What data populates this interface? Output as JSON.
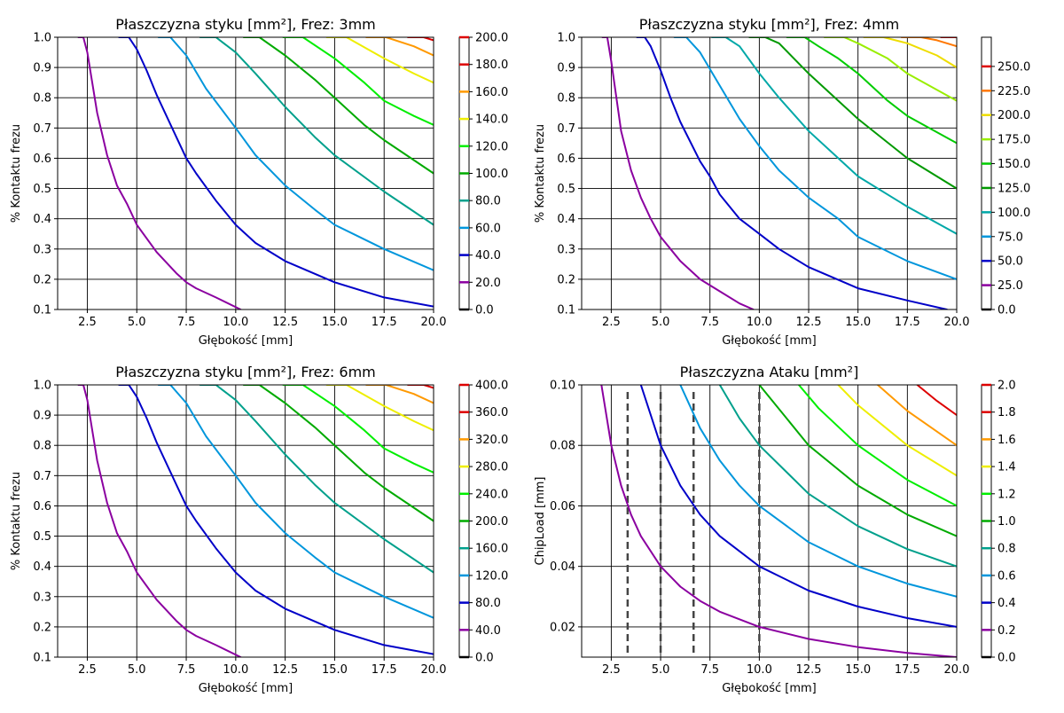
{
  "chart_data": [
    {
      "type": "line",
      "title": "Płaszczyzna styku [mm²], Frez: 3mm",
      "xlabel": "Głębokość [mm]",
      "ylabel": "% Kontaktu frezu",
      "xlim": [
        1,
        20
      ],
      "ylim": [
        0.1,
        1.0
      ],
      "grid": true,
      "xticks": [
        "2.5",
        "5.0",
        "7.5",
        "10.0",
        "12.5",
        "15.0",
        "17.5",
        "20.0"
      ],
      "yticks": [
        "0.1",
        "0.2",
        "0.3",
        "0.4",
        "0.5",
        "0.6",
        "0.7",
        "0.8",
        "0.9",
        "1.0"
      ],
      "colorbar": {
        "ticks": [
          "0.0",
          "20.0",
          "40.0",
          "60.0",
          "80.0",
          "100.0",
          "120.0",
          "140.0",
          "160.0",
          "180.0",
          "200.0"
        ],
        "range": [
          0,
          200
        ],
        "levels": [
          0,
          20,
          40,
          60,
          80,
          100,
          120,
          140,
          160,
          180,
          200
        ],
        "colors": [
          "#000000",
          "#8B00A0",
          "#0000C8",
          "#0096DC",
          "#00A08C",
          "#00AA00",
          "#00EE00",
          "#EEEE00",
          "#FF9900",
          "#DD0000",
          "#DD0000"
        ]
      },
      "series": [
        {
          "level": 20,
          "x": [
            2.05,
            2.3,
            2.5,
            3.0,
            3.5,
            4.0,
            4.5,
            5.0,
            6.0,
            7.0,
            7.5,
            8.0,
            9.0,
            10.25
          ],
          "y": [
            1.0,
            1.0,
            0.95,
            0.75,
            0.61,
            0.51,
            0.45,
            0.38,
            0.29,
            0.22,
            0.19,
            0.17,
            0.14,
            0.1
          ]
        },
        {
          "level": 40,
          "x": [
            4.1,
            4.6,
            5.0,
            5.5,
            6.0,
            7.0,
            7.5,
            8.0,
            9.0,
            10.0,
            11.0,
            12.5,
            15.0,
            17.5,
            20.0
          ],
          "y": [
            1.0,
            1.0,
            0.96,
            0.89,
            0.81,
            0.67,
            0.6,
            0.55,
            0.46,
            0.38,
            0.32,
            0.26,
            0.19,
            0.14,
            0.11
          ]
        },
        {
          "level": 60,
          "x": [
            6.1,
            6.7,
            7.5,
            8.5,
            10.0,
            11.0,
            12.5,
            14.0,
            15.0,
            17.5,
            20.0
          ],
          "y": [
            1.0,
            1.0,
            0.94,
            0.83,
            0.7,
            0.61,
            0.51,
            0.43,
            0.38,
            0.3,
            0.23
          ]
        },
        {
          "level": 80,
          "x": [
            8.2,
            9.0,
            10.0,
            11.0,
            12.5,
            14.0,
            15.0,
            17.5,
            20.0
          ],
          "y": [
            1.0,
            1.0,
            0.95,
            0.88,
            0.77,
            0.67,
            0.61,
            0.49,
            0.38
          ]
        },
        {
          "level": 100,
          "x": [
            10.4,
            11.2,
            12.5,
            14.0,
            15.0,
            16.5,
            17.5,
            20.0
          ],
          "y": [
            1.0,
            1.0,
            0.94,
            0.86,
            0.8,
            0.71,
            0.66,
            0.55
          ]
        },
        {
          "level": 120,
          "x": [
            12.4,
            13.4,
            15.0,
            16.5,
            17.5,
            19.0,
            20.0
          ],
          "y": [
            1.0,
            1.0,
            0.93,
            0.85,
            0.79,
            0.74,
            0.71
          ]
        },
        {
          "level": 140,
          "x": [
            14.6,
            15.6,
            17.5,
            19.0,
            20.0
          ],
          "y": [
            1.0,
            1.0,
            0.93,
            0.88,
            0.85
          ]
        },
        {
          "level": 160,
          "x": [
            16.6,
            17.6,
            19.0,
            20.0
          ],
          "y": [
            1.0,
            1.0,
            0.97,
            0.94
          ]
        },
        {
          "level": 180,
          "x": [
            18.7,
            19.5,
            20.0
          ],
          "y": [
            1.0,
            1.0,
            0.99
          ]
        }
      ]
    },
    {
      "type": "line",
      "title": "Płaszczyzna styku [mm²], Frez: 4mm",
      "xlabel": "Głębokość [mm]",
      "ylabel": "% Kontaktu frezu",
      "xlim": [
        1,
        20
      ],
      "ylim": [
        0.1,
        1.0
      ],
      "grid": true,
      "xticks": [
        "2.5",
        "5.0",
        "7.5",
        "10.0",
        "12.5",
        "15.0",
        "17.5",
        "20.0"
      ],
      "yticks": [
        "0.1",
        "0.2",
        "0.3",
        "0.4",
        "0.5",
        "0.6",
        "0.7",
        "0.8",
        "0.9",
        "1.0"
      ],
      "colorbar": {
        "ticks": [
          "0.0",
          "25.0",
          "50.0",
          "75.0",
          "100.0",
          "125.0",
          "150.0",
          "175.0",
          "200.0",
          "225.0",
          "250.0"
        ],
        "range": [
          0,
          280
        ],
        "levels": [
          0,
          25,
          50,
          75,
          100,
          125,
          150,
          175,
          200,
          225,
          250
        ],
        "colors": [
          "#000000",
          "#8B00A0",
          "#0000C8",
          "#0096DC",
          "#00A8A8",
          "#009900",
          "#00CC00",
          "#99EE00",
          "#EEDD00",
          "#FF7700",
          "#DD0000"
        ]
      },
      "series": [
        {
          "level": 25,
          "x": [
            2.05,
            2.3,
            2.5,
            3.0,
            3.5,
            4.0,
            4.5,
            5.0,
            6.0,
            7.0,
            8.0,
            9.0,
            9.7
          ],
          "y": [
            1.0,
            1.0,
            0.92,
            0.69,
            0.56,
            0.47,
            0.4,
            0.34,
            0.26,
            0.2,
            0.16,
            0.12,
            0.1
          ]
        },
        {
          "level": 50,
          "x": [
            3.8,
            4.2,
            4.5,
            5.0,
            5.5,
            6.0,
            7.0,
            7.5,
            8.0,
            9.0,
            10.0,
            11.0,
            12.5,
            15.0,
            17.5,
            19.5
          ],
          "y": [
            1.0,
            1.0,
            0.97,
            0.89,
            0.8,
            0.72,
            0.59,
            0.54,
            0.48,
            0.4,
            0.35,
            0.3,
            0.24,
            0.17,
            0.13,
            0.1
          ]
        },
        {
          "level": 75,
          "x": [
            5.7,
            6.3,
            7.0,
            8.0,
            9.0,
            10.0,
            11.0,
            12.5,
            14.0,
            15.0,
            17.5,
            20.0
          ],
          "y": [
            1.0,
            1.0,
            0.95,
            0.84,
            0.73,
            0.64,
            0.56,
            0.47,
            0.4,
            0.34,
            0.26,
            0.2
          ]
        },
        {
          "level": 100,
          "x": [
            7.6,
            8.3,
            9.0,
            10.0,
            11.0,
            12.5,
            14.0,
            15.0,
            17.5,
            20.0
          ],
          "y": [
            1.0,
            1.0,
            0.97,
            0.88,
            0.8,
            0.69,
            0.6,
            0.54,
            0.44,
            0.35
          ]
        },
        {
          "level": 125,
          "x": [
            9.5,
            10.3,
            11.0,
            12.5,
            14.0,
            15.0,
            17.5,
            20.0
          ],
          "y": [
            1.0,
            1.0,
            0.98,
            0.88,
            0.79,
            0.73,
            0.6,
            0.5
          ]
        },
        {
          "level": 150,
          "x": [
            11.4,
            12.3,
            13.0,
            14.0,
            15.0,
            16.5,
            17.5,
            20.0
          ],
          "y": [
            1.0,
            1.0,
            0.97,
            0.93,
            0.88,
            0.79,
            0.74,
            0.65
          ]
        },
        {
          "level": 175,
          "x": [
            13.3,
            14.3,
            15.0,
            16.5,
            17.5,
            20.0
          ],
          "y": [
            1.0,
            1.0,
            0.98,
            0.93,
            0.88,
            0.79
          ]
        },
        {
          "level": 200,
          "x": [
            15.3,
            16.3,
            17.5,
            19.0,
            20.0
          ],
          "y": [
            1.0,
            1.0,
            0.98,
            0.94,
            0.9
          ]
        },
        {
          "level": 225,
          "x": [
            17.2,
            18.2,
            19.0,
            20.0
          ],
          "y": [
            1.0,
            1.0,
            0.99,
            0.97
          ]
        },
        {
          "level": 250,
          "x": [
            19.2,
            20.0
          ],
          "y": [
            1.0,
            1.0
          ]
        }
      ]
    },
    {
      "type": "line",
      "title": "Płaszczyzna styku [mm²], Frez: 6mm",
      "xlabel": "Głębokość [mm]",
      "ylabel": "% Kontaktu frezu",
      "xlim": [
        1,
        20
      ],
      "ylim": [
        0.1,
        1.0
      ],
      "grid": true,
      "xticks": [
        "2.5",
        "5.0",
        "7.5",
        "10.0",
        "12.5",
        "15.0",
        "17.5",
        "20.0"
      ],
      "yticks": [
        "0.1",
        "0.2",
        "0.3",
        "0.4",
        "0.5",
        "0.6",
        "0.7",
        "0.8",
        "0.9",
        "1.0"
      ],
      "colorbar": {
        "ticks": [
          "0.0",
          "40.0",
          "80.0",
          "120.0",
          "160.0",
          "200.0",
          "240.0",
          "280.0",
          "320.0",
          "360.0",
          "400.0"
        ],
        "range": [
          0,
          400
        ],
        "levels": [
          0,
          40,
          80,
          120,
          160,
          200,
          240,
          280,
          320,
          360,
          400
        ],
        "colors": [
          "#000000",
          "#8B00A0",
          "#0000C8",
          "#0096DC",
          "#00A08C",
          "#00AA00",
          "#00EE00",
          "#EEEE00",
          "#FF9900",
          "#DD0000",
          "#DD0000"
        ]
      },
      "series": [
        {
          "level": 40,
          "x": [
            2.05,
            2.3,
            2.5,
            3.0,
            3.5,
            4.0,
            4.5,
            5.0,
            6.0,
            7.0,
            7.5,
            8.0,
            9.0,
            10.25
          ],
          "y": [
            1.0,
            1.0,
            0.95,
            0.75,
            0.61,
            0.51,
            0.45,
            0.38,
            0.29,
            0.22,
            0.19,
            0.17,
            0.14,
            0.1
          ]
        },
        {
          "level": 80,
          "x": [
            4.1,
            4.6,
            5.0,
            5.5,
            6.0,
            7.0,
            7.5,
            8.0,
            9.0,
            10.0,
            11.0,
            12.5,
            15.0,
            17.5,
            20.0
          ],
          "y": [
            1.0,
            1.0,
            0.96,
            0.89,
            0.81,
            0.67,
            0.6,
            0.55,
            0.46,
            0.38,
            0.32,
            0.26,
            0.19,
            0.14,
            0.11
          ]
        },
        {
          "level": 120,
          "x": [
            6.1,
            6.7,
            7.5,
            8.5,
            10.0,
            11.0,
            12.5,
            14.0,
            15.0,
            17.5,
            20.0
          ],
          "y": [
            1.0,
            1.0,
            0.94,
            0.83,
            0.7,
            0.61,
            0.51,
            0.43,
            0.38,
            0.3,
            0.23
          ]
        },
        {
          "level": 160,
          "x": [
            8.2,
            9.0,
            10.0,
            11.0,
            12.5,
            14.0,
            15.0,
            17.5,
            20.0
          ],
          "y": [
            1.0,
            1.0,
            0.95,
            0.88,
            0.77,
            0.67,
            0.61,
            0.49,
            0.38
          ]
        },
        {
          "level": 200,
          "x": [
            10.4,
            11.2,
            12.5,
            14.0,
            15.0,
            16.5,
            17.5,
            20.0
          ],
          "y": [
            1.0,
            1.0,
            0.94,
            0.86,
            0.8,
            0.71,
            0.66,
            0.55
          ]
        },
        {
          "level": 240,
          "x": [
            12.4,
            13.4,
            15.0,
            16.5,
            17.5,
            19.0,
            20.0
          ],
          "y": [
            1.0,
            1.0,
            0.93,
            0.85,
            0.79,
            0.74,
            0.71
          ]
        },
        {
          "level": 280,
          "x": [
            14.6,
            15.6,
            17.5,
            19.0,
            20.0
          ],
          "y": [
            1.0,
            1.0,
            0.93,
            0.88,
            0.85
          ]
        },
        {
          "level": 320,
          "x": [
            16.6,
            17.6,
            19.0,
            20.0
          ],
          "y": [
            1.0,
            1.0,
            0.97,
            0.94
          ]
        },
        {
          "level": 360,
          "x": [
            18.7,
            19.5,
            20.0
          ],
          "y": [
            1.0,
            1.0,
            0.99
          ]
        }
      ]
    },
    {
      "type": "line",
      "title": "Płaszczyzna Ataku [mm²]",
      "xlabel": "Głębokość [mm]",
      "ylabel": "ChipLoad [mm]",
      "xlim": [
        1,
        20
      ],
      "ylim": [
        0.01,
        0.1
      ],
      "grid": true,
      "xticks": [
        "2.5",
        "5.0",
        "7.5",
        "10.0",
        "12.5",
        "15.0",
        "17.5",
        "20.0"
      ],
      "yticks": [
        "0.02",
        "0.04",
        "0.06",
        "0.08",
        "0.10"
      ],
      "colorbar": {
        "ticks": [
          "0.0",
          "0.2",
          "0.4",
          "0.6",
          "0.8",
          "1.0",
          "1.2",
          "1.4",
          "1.6",
          "1.8",
          "2.0"
        ],
        "range": [
          0,
          2
        ],
        "levels": [
          0,
          0.2,
          0.4,
          0.6,
          0.8,
          1.0,
          1.2,
          1.4,
          1.6,
          1.8,
          2.0
        ],
        "colors": [
          "#000000",
          "#8B00A0",
          "#0000C8",
          "#0096DC",
          "#00A08C",
          "#00AA00",
          "#00EE00",
          "#EEEE00",
          "#FF9900",
          "#DD0000",
          "#DD0000"
        ]
      },
      "series": [
        {
          "level": 0.2,
          "x": [
            2.0,
            2.5,
            3.0,
            3.5,
            4.0,
            5.0,
            6.0,
            7.0,
            8.0,
            10.0,
            12.5,
            15.0,
            17.5,
            20.0
          ],
          "y": [
            0.1,
            0.08,
            0.0667,
            0.0571,
            0.05,
            0.04,
            0.0333,
            0.0286,
            0.025,
            0.02,
            0.016,
            0.0133,
            0.0114,
            0.01
          ]
        },
        {
          "level": 0.4,
          "x": [
            4.0,
            5.0,
            6.0,
            7.0,
            8.0,
            10.0,
            12.5,
            15.0,
            17.5,
            20.0
          ],
          "y": [
            0.1,
            0.08,
            0.0667,
            0.0571,
            0.05,
            0.04,
            0.032,
            0.0267,
            0.0229,
            0.02
          ]
        },
        {
          "level": 0.6,
          "x": [
            6.0,
            7.0,
            8.0,
            9.0,
            10.0,
            12.5,
            15.0,
            17.5,
            20.0
          ],
          "y": [
            0.1,
            0.0857,
            0.075,
            0.0667,
            0.06,
            0.048,
            0.04,
            0.0343,
            0.03
          ]
        },
        {
          "level": 0.8,
          "x": [
            8.0,
            9.0,
            10.0,
            12.5,
            15.0,
            17.5,
            20.0
          ],
          "y": [
            0.1,
            0.0889,
            0.08,
            0.064,
            0.0533,
            0.0457,
            0.04
          ]
        },
        {
          "level": 1.0,
          "x": [
            10.0,
            12.5,
            15.0,
            17.5,
            20.0
          ],
          "y": [
            0.1,
            0.08,
            0.0667,
            0.0571,
            0.05
          ]
        },
        {
          "level": 1.2,
          "x": [
            12.0,
            13.0,
            15.0,
            17.5,
            20.0
          ],
          "y": [
            0.1,
            0.0923,
            0.08,
            0.0686,
            0.06
          ]
        },
        {
          "level": 1.4,
          "x": [
            14.0,
            15.0,
            17.5,
            20.0
          ],
          "y": [
            0.1,
            0.0933,
            0.08,
            0.07
          ]
        },
        {
          "level": 1.6,
          "x": [
            16.0,
            17.5,
            20.0
          ],
          "y": [
            0.1,
            0.0914,
            0.08
          ]
        },
        {
          "level": 1.8,
          "x": [
            18.0,
            19.0,
            20.0
          ],
          "y": [
            0.1,
            0.0947,
            0.09
          ]
        }
      ],
      "vlines": [
        3.33,
        5.0,
        6.67,
        10.0
      ]
    }
  ]
}
